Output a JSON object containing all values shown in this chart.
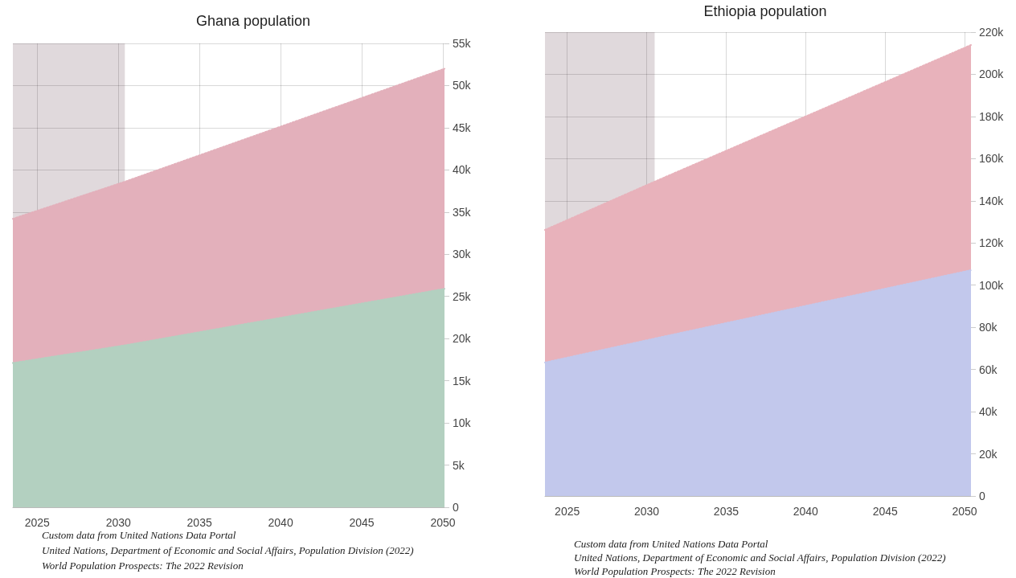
{
  "chart_data": [
    {
      "type": "area",
      "title": "Ghana population",
      "stacked": true,
      "grid": true,
      "marker": "none",
      "line_style": "dotted",
      "xlim": [
        2023.5,
        2050.1
      ],
      "xticks": [
        2025,
        2030,
        2035,
        2040,
        2045,
        2050
      ],
      "ylim": [
        0,
        55000
      ],
      "yticks": [
        {
          "value": 0,
          "label": "0"
        },
        {
          "value": 5000,
          "label": "5k"
        },
        {
          "value": 10000,
          "label": "10k"
        },
        {
          "value": 15000,
          "label": "15k"
        },
        {
          "value": 20000,
          "label": "20k"
        },
        {
          "value": 25000,
          "label": "25k"
        },
        {
          "value": 30000,
          "label": "30k"
        },
        {
          "value": 35000,
          "label": "35k"
        },
        {
          "value": 40000,
          "label": "40k"
        },
        {
          "value": 45000,
          "label": "45k"
        },
        {
          "value": 50000,
          "label": "50k"
        },
        {
          "value": 55000,
          "label": "55k"
        }
      ],
      "x": [
        2023.5,
        2030.4,
        2050.1
      ],
      "series": [
        {
          "color": "#b3d0c0",
          "values": [
            17100,
            19200,
            25900
          ]
        },
        {
          "color": "#e3b0bb",
          "values": [
            17100,
            19400,
            26100
          ]
        }
      ],
      "bands": [
        {
          "axis": "x",
          "from": 2023.5,
          "to": 2030.4
        }
      ],
      "annotations": [
        "Custom data from United Nations Data Portal",
        "United Nations, Department of Economic and Social Affairs, Population Division (2022)",
        "World Population Prospects: The 2022 Revision"
      ]
    },
    {
      "type": "area",
      "title": "Ethiopia population",
      "stacked": true,
      "grid": true,
      "marker": "none",
      "line_style": "dotted",
      "xlim": [
        2023.6,
        2050.4
      ],
      "xticks": [
        2025,
        2030,
        2035,
        2040,
        2045,
        2050
      ],
      "ylim": [
        0,
        220000
      ],
      "yticks": [
        {
          "value": 0,
          "label": "0"
        },
        {
          "value": 20000,
          "label": "20k"
        },
        {
          "value": 40000,
          "label": "40k"
        },
        {
          "value": 60000,
          "label": "60k"
        },
        {
          "value": 80000,
          "label": "80k"
        },
        {
          "value": 100000,
          "label": "100k"
        },
        {
          "value": 120000,
          "label": "120k"
        },
        {
          "value": 140000,
          "label": "140k"
        },
        {
          "value": 160000,
          "label": "160k"
        },
        {
          "value": 180000,
          "label": "180k"
        },
        {
          "value": 200000,
          "label": "200k"
        },
        {
          "value": 220000,
          "label": "220k"
        }
      ],
      "x": [
        2023.6,
        2030.5,
        2050.4
      ],
      "series": [
        {
          "color": "#c2c8ec",
          "values": [
            63300,
            74700,
            107100
          ]
        },
        {
          "color": "#e8b2bb",
          "values": [
            62900,
            74400,
            106800
          ]
        }
      ],
      "bands": [
        {
          "axis": "x",
          "from": 2023.6,
          "to": 2030.5
        }
      ],
      "annotations": [
        "Custom data from United Nations Data Portal",
        "United Nations, Department of Economic and Social Affairs, Population Division (2022)",
        "World Population Prospects: The 2022 Revision"
      ]
    }
  ]
}
